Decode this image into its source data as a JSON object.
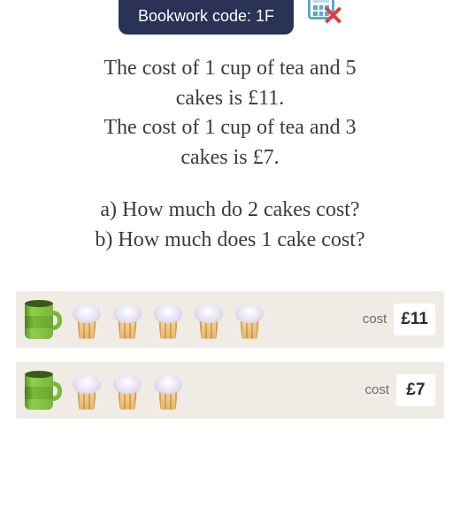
{
  "badge": {
    "text": "Bookwork code: 1F",
    "bg": "#2a3256",
    "fg": "#ffffff"
  },
  "calc_icon": {
    "border": "#5aa9d6",
    "cross": "#e23b3b"
  },
  "problem": {
    "line1": "The cost of 1 cup of tea and 5",
    "line2": "cakes is £11.",
    "line3": "The cost of 1 cup of tea and 3",
    "line4": "cakes is £7."
  },
  "questions": {
    "a": "a) How much do 2 cakes cost?",
    "b": "b) How much does 1 cake cost?"
  },
  "rows": [
    {
      "cups": 1,
      "cakes": 5,
      "cost_label": "cost",
      "cost_value": "£11"
    },
    {
      "cups": 1,
      "cakes": 3,
      "cost_label": "cost",
      "cost_value": "£7"
    }
  ],
  "colors": {
    "row_bg": "#f0ece5",
    "cup_green": "#7ab838",
    "frost": "#e4dff0",
    "base": "#e8b56a",
    "text": "#363c48"
  },
  "fontsize": {
    "body": 24,
    "cost_label": 15,
    "cost_value": 19,
    "badge": 18
  }
}
